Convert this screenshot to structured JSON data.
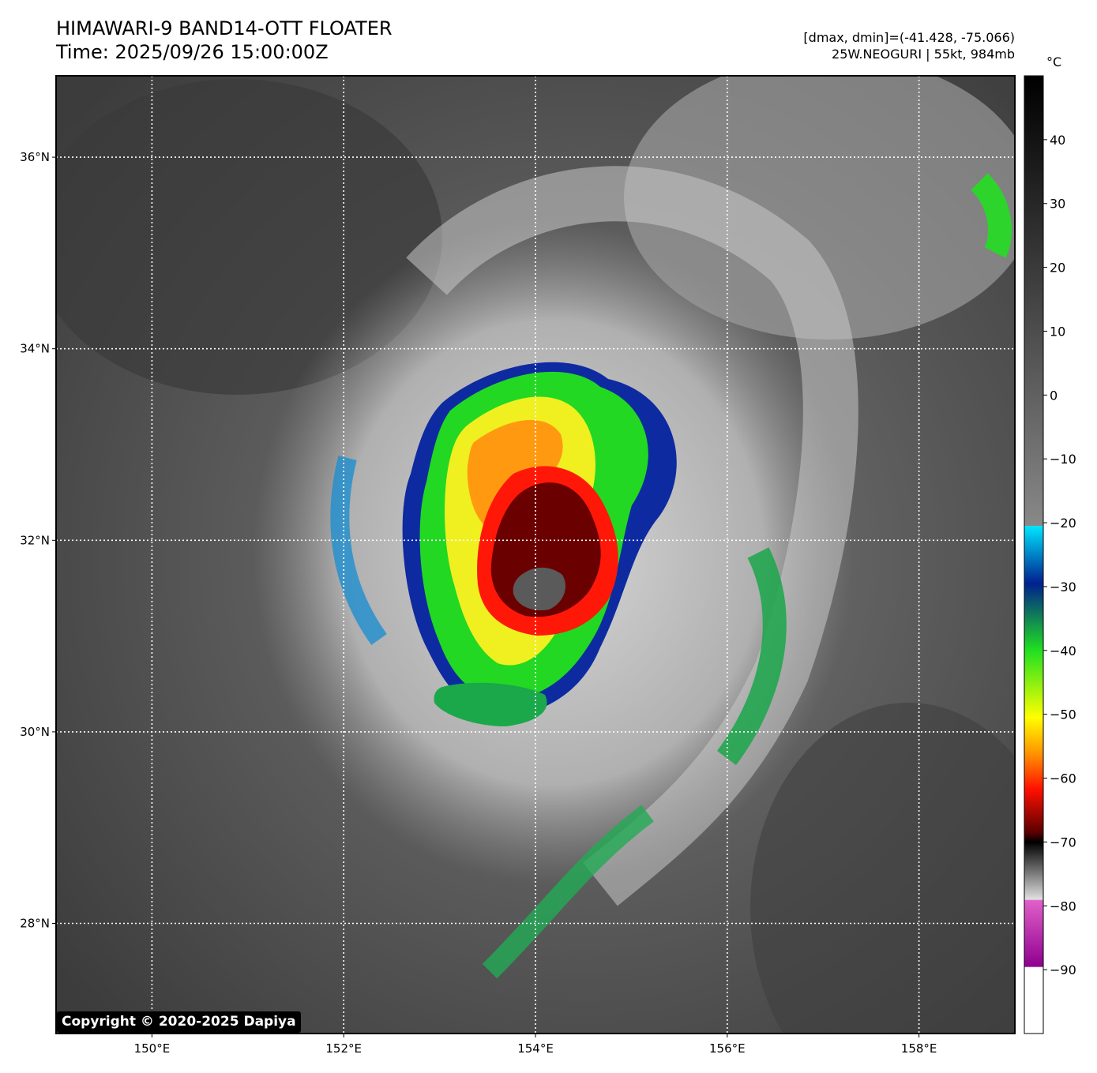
{
  "header": {
    "title_line1": "HIMAWARI-9 BAND14-OTT FLOATER",
    "title_line2": "Time: 2025/09/26 15:00:00Z",
    "info_line1": "[dmax, dmin]=(-41.428, -75.066)",
    "info_line2": "25W.NEOGURI | 55kt, 984mb"
  },
  "map": {
    "lon_range": [
      149.0,
      159.0
    ],
    "lat_range": [
      26.85,
      36.85
    ],
    "grid": true,
    "lon_ticks": [
      {
        "value": 150,
        "label": "150°E"
      },
      {
        "value": 152,
        "label": "152°E"
      },
      {
        "value": 154,
        "label": "154°E"
      },
      {
        "value": 156,
        "label": "156°E"
      },
      {
        "value": 158,
        "label": "158°E"
      }
    ],
    "lat_ticks": [
      {
        "value": 28,
        "label": "28°N"
      },
      {
        "value": 30,
        "label": "30°N"
      },
      {
        "value": 32,
        "label": "32°N"
      },
      {
        "value": 34,
        "label": "34°N"
      },
      {
        "value": 36,
        "label": "36°N"
      }
    ],
    "storm_center": {
      "lon": 154.1,
      "lat": 31.5
    }
  },
  "colorbar": {
    "unit": "°C",
    "range": [
      -100,
      50
    ],
    "ticks": [
      {
        "value": 40,
        "label": "40"
      },
      {
        "value": 30,
        "label": "30"
      },
      {
        "value": 20,
        "label": "20"
      },
      {
        "value": 10,
        "label": "10"
      },
      {
        "value": 0,
        "label": "0"
      },
      {
        "value": -10,
        "label": "−10"
      },
      {
        "value": -20,
        "label": "−20"
      },
      {
        "value": -30,
        "label": "−30"
      },
      {
        "value": -40,
        "label": "−40"
      },
      {
        "value": -50,
        "label": "−50"
      },
      {
        "value": -60,
        "label": "−60"
      },
      {
        "value": -70,
        "label": "−70"
      },
      {
        "value": -80,
        "label": "−80"
      },
      {
        "value": -90,
        "label": "−90"
      }
    ],
    "colors": {
      "warm": "#000000",
      "cool": "#d8d8d8",
      "cyan": "#00e5ff",
      "blue": "#00208f",
      "green": "#20e020",
      "yellow": "#ffff00",
      "orange": "#ff8c00",
      "red": "#ff1000",
      "darkred": "#5a0000",
      "magenta": "#e040c0",
      "white": "#ffffff"
    }
  },
  "footer": {
    "copyright": "Copyright © 2020-2025 Dapiya"
  }
}
